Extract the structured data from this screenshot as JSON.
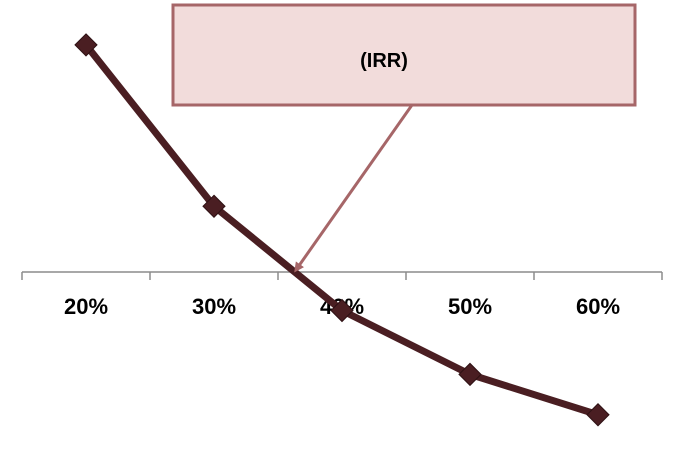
{
  "chart_data": {
    "type": "line",
    "categories": [
      "20%",
      "30%",
      "40%",
      "50%",
      "60%"
    ],
    "series": [
      {
        "values": [
          6.4,
          1.6,
          -1.5,
          -3.4,
          -4.6
        ]
      }
    ],
    "ylim": [
      -5.5,
      7.2
    ],
    "grid": false,
    "legend": "none",
    "annotation": {
      "text": "(IRR)",
      "points_to_category_position": 1.64
    },
    "colors": {
      "line": "#4a1e22",
      "marker": "#4a1e22",
      "axis": "#8c8c8c",
      "callout_fill": "#f2dcdb",
      "callout_border": "#a66668",
      "callout_arrow": "#a66668"
    }
  }
}
